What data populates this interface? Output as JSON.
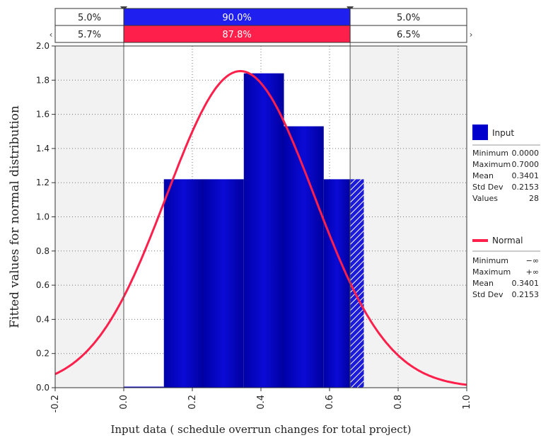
{
  "chart_data": {
    "type": "bar",
    "xlabel": "Input data ( schedule overrun changes for total project)",
    "ylabel": "Fitted values for normal distribution",
    "xlim": [
      -0.2,
      1.0
    ],
    "ylim": [
      0,
      2.0
    ],
    "x_ticks": [
      "-0.2",
      "0.0",
      "0.2",
      "0.4",
      "0.6",
      "0.8",
      "1.0"
    ],
    "y_ticks": [
      "0.0",
      "0.2",
      "0.4",
      "0.6",
      "0.8",
      "1.0",
      "1.2",
      "1.4",
      "1.6",
      "1.8",
      "2.0"
    ],
    "grid": true,
    "bins": [
      {
        "x0": 0.0,
        "x1": 0.117,
        "value": 0.0
      },
      {
        "x0": 0.117,
        "x1": 0.233,
        "value": 1.22
      },
      {
        "x0": 0.233,
        "x1": 0.35,
        "value": 1.22
      },
      {
        "x0": 0.35,
        "x1": 0.467,
        "value": 1.84
      },
      {
        "x0": 0.467,
        "x1": 0.583,
        "value": 1.53
      },
      {
        "x0": 0.583,
        "x1": 0.7,
        "value": 1.22
      }
    ],
    "bar_color": "#0000cc",
    "curve": {
      "name": "Normal",
      "color": "#ff1f4b",
      "mean": 0.3401,
      "std": 0.2153
    },
    "delimiters": [
      0.0,
      0.66
    ],
    "band_top": {
      "left": "5.0%",
      "middle": "90.0%",
      "right": "5.0%",
      "color": "#1f1ff0"
    },
    "band_bottom": {
      "left": "5.7%",
      "middle": "87.8%",
      "right": "6.5%",
      "color": "#ff1f4b"
    },
    "legend": {
      "input": {
        "name": "Input",
        "stats": [
          {
            "label": "Minimum",
            "value": "0.0000"
          },
          {
            "label": "Maximum",
            "value": "0.7000"
          },
          {
            "label": "Mean",
            "value": "0.3401"
          },
          {
            "label": "Std Dev",
            "value": "0.2153"
          },
          {
            "label": "Values",
            "value": "28"
          }
        ]
      },
      "normal": {
        "name": "Normal",
        "stats": [
          {
            "label": "Minimum",
            "value": "−∞"
          },
          {
            "label": "Maximum",
            "value": "+∞"
          },
          {
            "label": "Mean",
            "value": "0.3401"
          },
          {
            "label": "Std Dev",
            "value": "0.2153"
          }
        ]
      }
    }
  }
}
